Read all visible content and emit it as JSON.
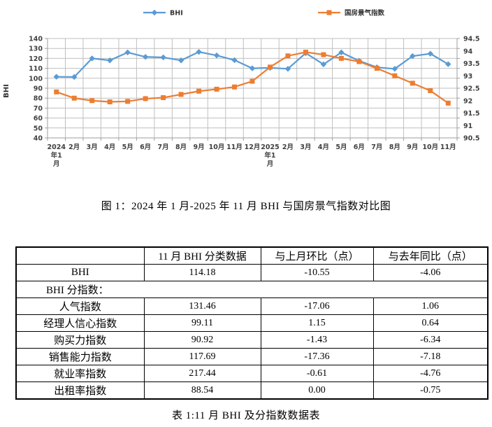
{
  "figure_caption": "图 1：2024 年 1 月-2025 年 11 月 BHI 与国房景气指数对比图",
  "chart_data": {
    "type": "line",
    "title": "",
    "categories": [
      "2024年1月",
      "2月",
      "3月",
      "4月",
      "5月",
      "6月",
      "7月",
      "8月",
      "9月",
      "10月",
      "11月",
      "12月",
      "2025年1月",
      "2月",
      "3月",
      "4月",
      "5月",
      "6月",
      "7月",
      "8月",
      "9月",
      "10月",
      "11月"
    ],
    "series": [
      {
        "name": "BHI",
        "axis": "left",
        "color": "#5B9BD5",
        "marker": "diamond",
        "values": [
          101.5,
          101.3,
          120,
          118,
          126,
          121.5,
          121,
          118,
          126.5,
          123,
          118.24,
          110,
          110.5,
          109.5,
          125.3,
          114,
          126,
          117.5,
          111,
          109.5,
          122.3,
          124.73,
          114.18
        ]
      },
      {
        "name": "国房景气指数",
        "axis": "right",
        "color": "#ED7D31",
        "marker": "square",
        "values": [
          92.35,
          92.1,
          92.0,
          91.95,
          91.97,
          92.08,
          92.12,
          92.25,
          92.38,
          92.46,
          92.55,
          92.78,
          93.35,
          93.8,
          93.95,
          93.85,
          93.7,
          93.57,
          93.3,
          93.0,
          92.7,
          92.4,
          91.9
        ]
      }
    ],
    "left_axis": {
      "title": "BHI",
      "min": 40,
      "max": 140,
      "step": 10
    },
    "right_axis": {
      "min": 90.5,
      "max": 94.5,
      "step": 0.5
    },
    "grid": true,
    "legend_position": "top",
    "colors": {
      "grid": "#BFBFBF",
      "axis": "#9E9E9E",
      "tick_text": "#404040"
    }
  },
  "table": {
    "headers": [
      "",
      "11 月 BHI 分类数据",
      "与上月环比（点）",
      "与去年同比（点）"
    ],
    "rows": [
      {
        "label": "BHI",
        "span": false,
        "values": [
          "114.18",
          "-10.55",
          "-4.06"
        ]
      },
      {
        "label": "BHI 分指数：",
        "span": true,
        "values": []
      },
      {
        "label": "人气指数",
        "span": false,
        "values": [
          "131.46",
          "-17.06",
          "1.06"
        ]
      },
      {
        "label": "经理人信心指数",
        "span": false,
        "values": [
          "99.11",
          "1.15",
          "0.64"
        ]
      },
      {
        "label": "购买力指数",
        "span": false,
        "values": [
          "90.92",
          "-1.43",
          "-6.34"
        ]
      },
      {
        "label": "销售能力指数",
        "span": false,
        "values": [
          "117.69",
          "-17.36",
          "-7.18"
        ]
      },
      {
        "label": "就业率指数",
        "span": false,
        "values": [
          "217.44",
          "-0.61",
          "-4.76"
        ]
      },
      {
        "label": "出租率指数",
        "span": false,
        "values": [
          "88.54",
          "0.00",
          "-0.75"
        ]
      }
    ],
    "caption": "表 1:11 月 BHI 及分指数数据表"
  }
}
